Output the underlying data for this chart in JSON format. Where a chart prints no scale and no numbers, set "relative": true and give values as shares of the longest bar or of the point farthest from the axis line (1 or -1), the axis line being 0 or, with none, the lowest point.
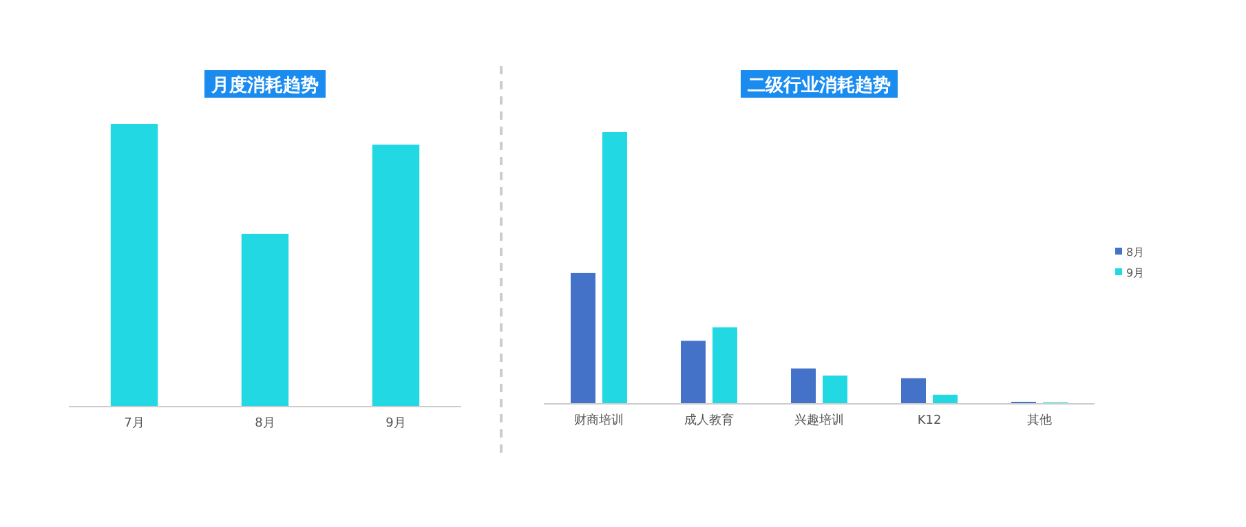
{
  "chart_data": [
    {
      "type": "bar",
      "title": "月度消耗趋势",
      "relative": true,
      "categories": [
        "7月",
        "8月",
        "9月"
      ],
      "values": [
        1,
        0.61,
        0.926
      ],
      "color": "#22d8e2",
      "legend": false
    },
    {
      "type": "bar",
      "title": "二级行业消耗趋势",
      "relative": true,
      "categories": [
        "财商培训",
        "成人教育",
        "兴趣培训",
        "K12",
        "其他"
      ],
      "legend": "right",
      "series": [
        {
          "name": "8月",
          "color": "#4472c8",
          "values": [
            0.48,
            0.23,
            0.128,
            0.092,
            0.005
          ]
        },
        {
          "name": "9月",
          "color": "#22d8e2",
          "values": [
            1,
            0.28,
            0.102,
            0.031,
            0.003
          ]
        }
      ]
    }
  ]
}
